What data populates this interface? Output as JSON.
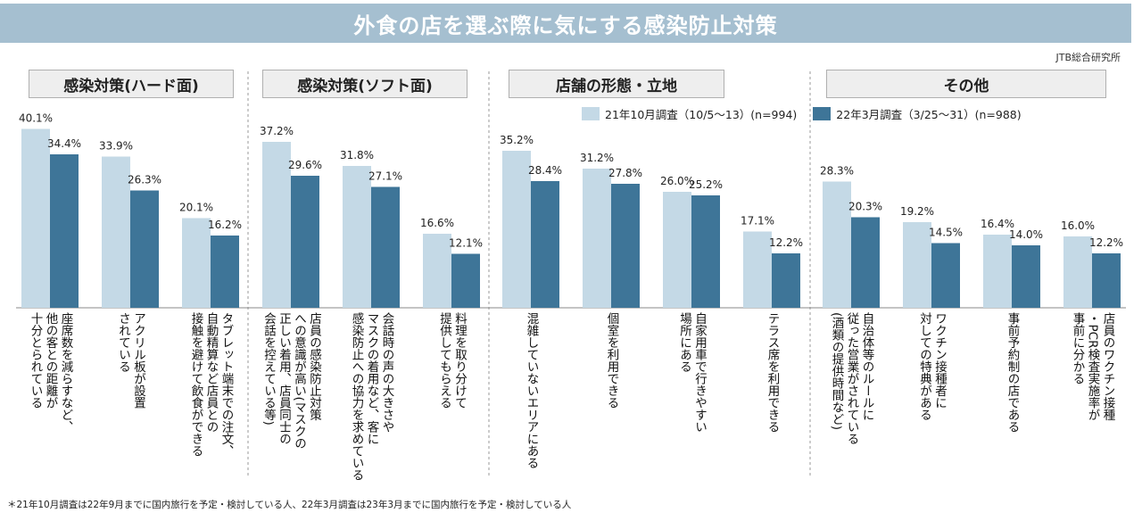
{
  "title": "外食の店を選ぶ際に気にする感染防止対策",
  "source": "JTB総合研究所",
  "footnote": "＊21年10月調査は22年9月までに国内旅行を予定・検討している人、22年3月調査は23年3月までに国内旅行を予定・検討している人",
  "groups": [
    "感染対策(ハード面)",
    "感染対策(ソフト面)",
    "店舗の形態・立地",
    "その他"
  ],
  "legend": {
    "s1": "21年10月調査（10/5～13）(n=994)",
    "s2": "22年3月調査（3/25～31）(n=988)"
  },
  "colors": {
    "s1": "#c4d9e6",
    "s2": "#3e7598"
  },
  "chart_data": {
    "type": "bar",
    "ylim": [
      0,
      45
    ],
    "grid": false,
    "legend_position": "top-right",
    "categories": [
      "座席数を減らすなど、他の客との距離が十分とられている",
      "アクリル板が設置されている",
      "タブレット端末での注文、自動精算など店員との接触を避けて飲食ができる",
      "店員の感染防止対策への意識が高い(マスクの正しい着用、店員同士の会話を控えている等)",
      "会話時の声の大きさやマスクの着用など、客に感染防止への協力を求めている",
      "料理を取り分けて提供してもらえる",
      "混雑していないエリアにある",
      "個室を利用できる",
      "自家用車で行きやすい場所にある",
      "テラス席を利用できる",
      "自治体等のルールに従った営業がされている(酒類の提供時間など)",
      "ワクチン接種者に対しての特典がある",
      "事前予約制の店である",
      "店員のワクチン接種・PCR検査実施率が事前に分かる"
    ],
    "category_lines": [
      [
        "座席数を減らすなど、",
        "他の客との距離が",
        "十分とられている"
      ],
      [
        "アクリル板が設置",
        "されている"
      ],
      [
        "タブレット端末での注文、",
        "自動精算など店員との",
        "接触を避けて飲食ができる"
      ],
      [
        "店員の感染防止対策",
        "への意識が高い(マスクの",
        "正しい着用、店員同士の",
        "会話を控えている等)"
      ],
      [
        "会話時の声の大きさや",
        "マスクの着用など、客に",
        "感染防止への協力を求めている"
      ],
      [
        "料理を取り分けて",
        "提供してもらえる"
      ],
      [
        "混雑していないエリアにある"
      ],
      [
        "個室を利用できる"
      ],
      [
        "自家用車で行きやすい",
        "場所にある"
      ],
      [
        "テラス席を利用できる"
      ],
      [
        "自治体等のルールに",
        "従った営業がされている",
        "(酒類の提供時間など)"
      ],
      [
        "ワクチン接種者に",
        "対しての特典がある"
      ],
      [
        "事前予約制の店である"
      ],
      [
        "店員のワクチン接種",
        "・PCR検査実施率が",
        "事前に分かる"
      ]
    ],
    "series": [
      {
        "name": "21年10月調査（10/5～13）(n=994)",
        "values": [
          40.1,
          33.9,
          20.1,
          37.2,
          31.8,
          16.6,
          35.2,
          31.2,
          26.0,
          17.1,
          28.3,
          19.2,
          16.4,
          16.0
        ]
      },
      {
        "name": "22年3月調査（3/25～31）(n=988)",
        "values": [
          34.4,
          26.3,
          16.2,
          29.6,
          27.1,
          12.1,
          28.4,
          27.8,
          25.2,
          12.2,
          20.3,
          14.5,
          14.0,
          12.2
        ]
      }
    ],
    "value_labels": {
      "s1": [
        "40.1%",
        "33.9%",
        "20.1%",
        "37.2%",
        "31.8%",
        "16.6%",
        "35.2%",
        "31.2%",
        "26.0%",
        "17.1%",
        "28.3%",
        "19.2%",
        "16.4%",
        "16.0%"
      ],
      "s2": [
        "34.4%",
        "26.3%",
        "16.2%",
        "29.6%",
        "27.1%",
        "12.1%",
        "28.4%",
        "27.8%",
        "25.2%",
        "12.2%",
        "20.3%",
        "14.5%",
        "14.0%",
        "12.2%"
      ]
    }
  }
}
